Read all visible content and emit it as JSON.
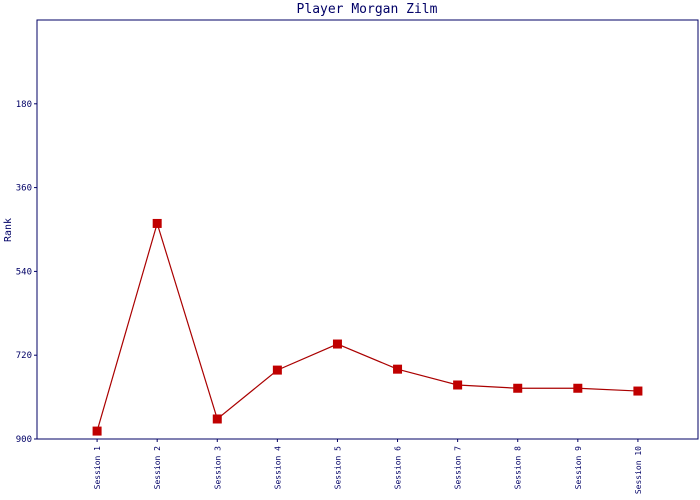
{
  "chart_data": {
    "type": "line",
    "title": "Player Morgan Zilm",
    "y_label": "Rank",
    "categories": [
      "Session 1",
      "Session 2",
      "Session 3",
      "Session 4",
      "Session 5",
      "Session 6",
      "Session 7",
      "Session 8",
      "Session 9",
      "Session 10"
    ],
    "series": [
      {
        "name": "Rank",
        "color": "#aa0000",
        "marker_color": "#c00000",
        "values": [
          883,
          437,
          857,
          752,
          696,
          750,
          784,
          791,
          791,
          797
        ]
      }
    ],
    "ylim": [
      900,
      0
    ],
    "yticks": [
      180,
      360,
      540,
      720,
      900
    ],
    "grid": false
  }
}
